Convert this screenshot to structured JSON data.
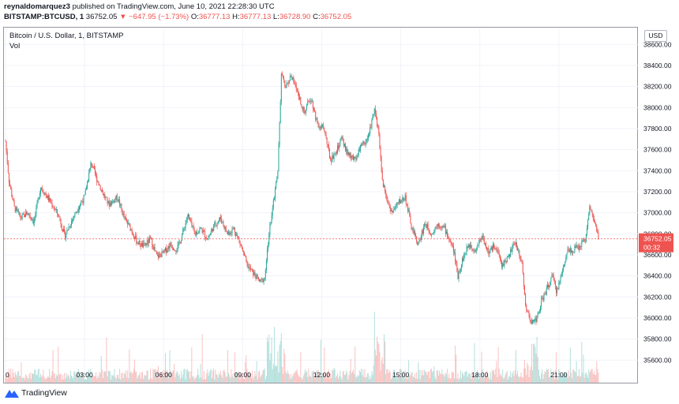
{
  "header": {
    "user": "reynaldomarquez3",
    "published": "published on TradingView.com, June 10, 2021 22:28:30 UTC",
    "symbol": "BITSTAMP:BTCUSD, 1",
    "last": "36752.05",
    "change": "−647.95 (−1.73%)",
    "ohlc": [
      {
        "label": "O:",
        "value": "36777.13"
      },
      {
        "label": "H:",
        "value": "36777.13"
      },
      {
        "label": "L:",
        "value": "36728.90"
      },
      {
        "label": "C:",
        "value": "36752.05"
      }
    ]
  },
  "legend": {
    "title": "Bitcoin / U.S. Dollar, 1, BITSTAMP",
    "vol": "Vol"
  },
  "currency_button": "USD",
  "price_label": {
    "price": "36752.05",
    "countdown": "00:32"
  },
  "branding": "TradingView",
  "colors": {
    "up": "#26a69a",
    "down": "#ef5350",
    "grid": "#f0f3fa",
    "axis_text": "#131722"
  },
  "chart_data": {
    "type": "candlestick",
    "title": "Bitcoin / U.S. Dollar, 1, BITSTAMP",
    "ylim": [
      35520,
      38760
    ],
    "xlim": [
      0,
      1440
    ],
    "y_ticks": [
      35600,
      35800,
      36000,
      36200,
      36400,
      36600,
      36800,
      37000,
      37200,
      37400,
      37600,
      37800,
      38000,
      38200,
      38400,
      38600
    ],
    "y_tick_labels": [
      "35600.00",
      "35800.00",
      "36000.00",
      "36200.00",
      "36400.00",
      "36600.00",
      "36800.00",
      "37000.00",
      "37200.00",
      "37400.00",
      "37600.00",
      "37800.00",
      "38000.00",
      "38200.00",
      "38400.00",
      "38600.00"
    ],
    "x_ticks_minutes": [
      0,
      180,
      360,
      540,
      720,
      900,
      1080,
      1260
    ],
    "x_tick_labels": [
      "0",
      "03:00",
      "06:00",
      "09:00",
      "12:00",
      "15:00",
      "18:00",
      "21:00"
    ],
    "current_price": 36752.05,
    "price_path": [
      [
        0,
        37680
      ],
      [
        8,
        37300
      ],
      [
        20,
        37050
      ],
      [
        35,
        36950
      ],
      [
        50,
        37000
      ],
      [
        65,
        36920
      ],
      [
        80,
        37250
      ],
      [
        95,
        37150
      ],
      [
        110,
        37050
      ],
      [
        120,
        36980
      ],
      [
        135,
        36780
      ],
      [
        150,
        36920
      ],
      [
        165,
        37050
      ],
      [
        180,
        37150
      ],
      [
        195,
        37480
      ],
      [
        205,
        37350
      ],
      [
        220,
        37200
      ],
      [
        235,
        37080
      ],
      [
        255,
        37150
      ],
      [
        270,
        36950
      ],
      [
        285,
        36850
      ],
      [
        300,
        36720
      ],
      [
        315,
        36680
      ],
      [
        330,
        36750
      ],
      [
        345,
        36580
      ],
      [
        360,
        36620
      ],
      [
        375,
        36700
      ],
      [
        390,
        36650
      ],
      [
        400,
        36760
      ],
      [
        415,
        36980
      ],
      [
        430,
        36800
      ],
      [
        445,
        36850
      ],
      [
        460,
        36750
      ],
      [
        475,
        36880
      ],
      [
        490,
        36950
      ],
      [
        505,
        36800
      ],
      [
        520,
        36850
      ],
      [
        535,
        36700
      ],
      [
        550,
        36500
      ],
      [
        565,
        36420
      ],
      [
        580,
        36340
      ],
      [
        590,
        36380
      ],
      [
        600,
        36800
      ],
      [
        610,
        37100
      ],
      [
        620,
        37400
      ],
      [
        628,
        38300
      ],
      [
        638,
        38200
      ],
      [
        650,
        38300
      ],
      [
        665,
        38150
      ],
      [
        680,
        37950
      ],
      [
        695,
        38100
      ],
      [
        710,
        37850
      ],
      [
        725,
        37800
      ],
      [
        740,
        37500
      ],
      [
        755,
        37600
      ],
      [
        765,
        37700
      ],
      [
        780,
        37550
      ],
      [
        795,
        37500
      ],
      [
        810,
        37650
      ],
      [
        825,
        37700
      ],
      [
        840,
        38000
      ],
      [
        850,
        37750
      ],
      [
        858,
        37300
      ],
      [
        870,
        37100
      ],
      [
        880,
        37000
      ],
      [
        895,
        37100
      ],
      [
        910,
        37150
      ],
      [
        925,
        36850
      ],
      [
        940,
        36700
      ],
      [
        955,
        36900
      ],
      [
        970,
        36800
      ],
      [
        985,
        36900
      ],
      [
        1000,
        36850
      ],
      [
        1010,
        36750
      ],
      [
        1020,
        36650
      ],
      [
        1030,
        36400
      ],
      [
        1040,
        36550
      ],
      [
        1055,
        36700
      ],
      [
        1070,
        36650
      ],
      [
        1085,
        36780
      ],
      [
        1100,
        36620
      ],
      [
        1115,
        36700
      ],
      [
        1130,
        36500
      ],
      [
        1145,
        36580
      ],
      [
        1160,
        36720
      ],
      [
        1175,
        36550
      ],
      [
        1185,
        36100
      ],
      [
        1195,
        35950
      ],
      [
        1210,
        36000
      ],
      [
        1220,
        36150
      ],
      [
        1235,
        36300
      ],
      [
        1245,
        36400
      ],
      [
        1255,
        36250
      ],
      [
        1265,
        36400
      ],
      [
        1280,
        36650
      ],
      [
        1295,
        36650
      ],
      [
        1310,
        36700
      ],
      [
        1320,
        36750
      ],
      [
        1330,
        37050
      ],
      [
        1340,
        36930
      ],
      [
        1350,
        36752
      ]
    ]
  }
}
